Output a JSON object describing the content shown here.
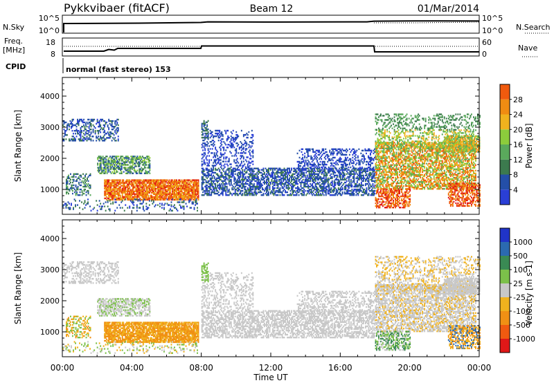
{
  "header": {
    "station": "Pykkvibaer (fitACF)",
    "beam": "Beam 12",
    "date": "01/Mar/2014"
  },
  "params": {
    "nsky_label": "N.Sky",
    "nsky_ticks": [
      "10^5",
      "10^0"
    ],
    "nsearch_label": "N.Search",
    "nsearch_ticks": [
      "10^5",
      "10^0"
    ],
    "freq_label_1": "Freq.",
    "freq_label_2": "[MHz]",
    "freq_ticks": [
      "18",
      "8"
    ],
    "nave_label": "Nave",
    "nave_ticks": [
      "60",
      "0"
    ],
    "cpid_label": "CPID",
    "cpid_text": "normal (fast stereo) 153"
  },
  "colors": {
    "power": [
      "#2a3fd6",
      "#244fa8",
      "#3c7a4e",
      "#5aa95c",
      "#8ccc3c",
      "#f0b21e",
      "#f08c12",
      "#f05a0e",
      "#e01818"
    ],
    "velocity": [
      "#2034c8",
      "#2b6ab0",
      "#3a8a54",
      "#7cc04a",
      "#c8c8c8",
      "#f0b21e",
      "#f09014",
      "#f05a10",
      "#e01818"
    ]
  },
  "chart_data": [
    {
      "type": "heatmap",
      "quantity": "Power",
      "ylabel": "Slant Range [km]",
      "yticks": [
        1000,
        2000,
        3000,
        4000
      ],
      "ylim": [
        200,
        4600
      ],
      "xlim": [
        0,
        24
      ],
      "colorbar": {
        "label": "Power [dB]",
        "ticks": [
          "4",
          "8",
          "12",
          "16",
          "20",
          "24",
          "28"
        ],
        "range": [
          0,
          30
        ]
      }
    },
    {
      "type": "heatmap",
      "quantity": "Velocity",
      "xlabel": "Time UT",
      "ylabel": "Slant Range [km]",
      "yticks": [
        1000,
        2000,
        3000,
        4000
      ],
      "ylim": [
        200,
        4600
      ],
      "xlim": [
        0,
        24
      ],
      "xticks": [
        "00:00",
        "04:00",
        "08:00",
        "12:00",
        "16:00",
        "20:00",
        "00:00"
      ],
      "colorbar": {
        "label": "Velocity [m s-1]",
        "ticks": [
          "1000",
          "500",
          "100",
          "25",
          "-25",
          "-100",
          "-500",
          "-1000"
        ]
      }
    }
  ]
}
